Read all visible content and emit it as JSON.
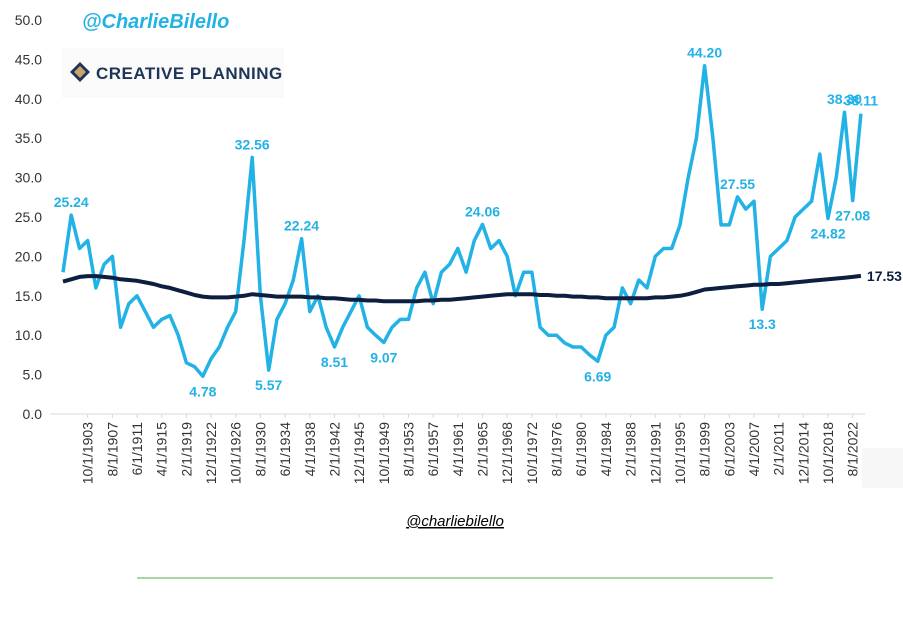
{
  "chart_data": {
    "type": "line",
    "title": "@CharlieBilello",
    "logo_text": "CREATIVE PLANNING",
    "source": "@charliebilello",
    "ylim": [
      0,
      50
    ],
    "yticks": [
      {
        "value": 0,
        "label": "0.0"
      },
      {
        "value": 5,
        "label": "5.0"
      },
      {
        "value": 10,
        "label": "10.0"
      },
      {
        "value": 15,
        "label": "15.0"
      },
      {
        "value": 20,
        "label": "20.0"
      },
      {
        "value": 25,
        "label": "25.0"
      },
      {
        "value": 30,
        "label": "30.0"
      },
      {
        "value": 35,
        "label": "35.0"
      },
      {
        "value": 40,
        "label": "40.0"
      },
      {
        "value": 45,
        "label": "45.0"
      },
      {
        "value": 50,
        "label": "50.0"
      }
    ],
    "grid": false,
    "categories": [
      null,
      null,
      null,
      "10/1/1903",
      null,
      null,
      "8/1/1907",
      null,
      null,
      "6/1/1911",
      null,
      null,
      "4/1/1915",
      null,
      null,
      "2/1/1919",
      null,
      null,
      "12/1/1922",
      null,
      null,
      "10/1/1926",
      null,
      null,
      "8/1/1930",
      null,
      null,
      "6/1/1934",
      null,
      null,
      "4/1/1938",
      null,
      null,
      "2/1/1942",
      null,
      null,
      "12/1/1945",
      null,
      null,
      "10/1/1949",
      null,
      null,
      "8/1/1953",
      null,
      null,
      "6/1/1957",
      null,
      null,
      "4/1/1961",
      null,
      null,
      "2/1/1965",
      null,
      null,
      "12/1/1968",
      null,
      null,
      "10/1/1972",
      null,
      null,
      "8/1/1976",
      null,
      null,
      "6/1/1980",
      null,
      null,
      "4/1/1984",
      null,
      null,
      "2/1/1988",
      null,
      null,
      "12/1/1991",
      null,
      null,
      "10/1/1995",
      null,
      null,
      "8/1/1999",
      null,
      null,
      "6/1/2003",
      null,
      null,
      "4/1/2007",
      null,
      null,
      "2/1/2011",
      null,
      null,
      "12/1/2014",
      null,
      null,
      "10/1/2018",
      null,
      null,
      "8/1/2022",
      null
    ],
    "series": [
      {
        "color": "#22b2e6",
        "values": [
          18,
          25.24,
          21,
          22,
          16,
          19,
          20,
          11,
          14,
          15,
          13,
          11,
          12,
          12.5,
          10,
          6.5,
          6,
          4.78,
          7,
          8.5,
          11,
          13,
          22,
          32.56,
          15,
          5.57,
          12,
          14,
          17,
          22.24,
          13,
          15,
          11,
          8.51,
          11,
          13,
          15,
          11,
          10,
          9.07,
          11,
          12,
          12,
          16,
          18,
          14,
          18,
          19,
          21,
          18,
          22,
          24.06,
          21,
          22,
          20,
          15,
          18,
          18,
          11,
          10,
          10,
          9,
          8.5,
          8.5,
          7.5,
          6.69,
          10,
          11,
          16,
          14,
          17,
          16,
          20,
          21,
          21,
          24,
          30,
          35,
          44.2,
          35,
          24,
          24,
          27.55,
          26,
          27,
          13.3,
          20,
          21,
          22,
          25,
          26,
          27,
          33,
          24.82,
          30,
          38.3,
          27.08,
          38.11
        ],
        "value_labels": [
          null,
          "25.24",
          null,
          null,
          null,
          null,
          null,
          null,
          null,
          null,
          null,
          null,
          null,
          null,
          null,
          null,
          null,
          "4.78",
          null,
          null,
          null,
          null,
          null,
          "32.56",
          null,
          "5.57",
          null,
          null,
          null,
          "22.24",
          null,
          null,
          null,
          "8.51",
          null,
          null,
          null,
          null,
          null,
          "9.07",
          null,
          null,
          null,
          null,
          null,
          null,
          null,
          null,
          null,
          null,
          null,
          "24.06",
          null,
          null,
          null,
          null,
          null,
          null,
          null,
          null,
          null,
          null,
          null,
          null,
          null,
          "6.69",
          null,
          null,
          null,
          null,
          null,
          null,
          null,
          null,
          null,
          null,
          null,
          null,
          "44.20",
          null,
          null,
          null,
          "27.55",
          null,
          null,
          "13.3",
          null,
          null,
          null,
          null,
          null,
          null,
          null,
          "24.82",
          null,
          "38.30",
          "27.08",
          "38.11"
        ]
      },
      {
        "color": "#0d1f40",
        "values": [
          16.8,
          17.1,
          17.4,
          17.5,
          17.5,
          17.4,
          17.3,
          17.1,
          17.0,
          16.9,
          16.7,
          16.5,
          16.2,
          16.0,
          15.7,
          15.4,
          15.1,
          14.9,
          14.8,
          14.8,
          14.8,
          14.9,
          15.0,
          15.2,
          15.1,
          15.0,
          14.9,
          14.9,
          14.9,
          14.9,
          14.8,
          14.8,
          14.7,
          14.7,
          14.6,
          14.5,
          14.5,
          14.4,
          14.4,
          14.3,
          14.3,
          14.3,
          14.3,
          14.3,
          14.4,
          14.4,
          14.5,
          14.5,
          14.6,
          14.7,
          14.8,
          14.9,
          15.0,
          15.1,
          15.2,
          15.2,
          15.2,
          15.2,
          15.1,
          15.1,
          15.0,
          15.0,
          14.9,
          14.9,
          14.8,
          14.8,
          14.7,
          14.7,
          14.7,
          14.7,
          14.7,
          14.7,
          14.8,
          14.8,
          14.9,
          15.0,
          15.2,
          15.5,
          15.8,
          15.9,
          16.0,
          16.1,
          16.2,
          16.3,
          16.4,
          16.4,
          16.5,
          16.5,
          16.6,
          16.7,
          16.8,
          16.9,
          17.0,
          17.1,
          17.2,
          17.3,
          17.4,
          17.53
        ],
        "value_labels": [
          null,
          null,
          null,
          null,
          null,
          null,
          null,
          null,
          null,
          null,
          null,
          null,
          null,
          null,
          null,
          null,
          null,
          null,
          null,
          null,
          null,
          null,
          null,
          null,
          null,
          null,
          null,
          null,
          null,
          null,
          null,
          null,
          null,
          null,
          null,
          null,
          null,
          null,
          null,
          null,
          null,
          null,
          null,
          null,
          null,
          null,
          null,
          null,
          null,
          null,
          null,
          null,
          null,
          null,
          null,
          null,
          null,
          null,
          null,
          null,
          null,
          null,
          null,
          null,
          null,
          null,
          null,
          null,
          null,
          null,
          null,
          null,
          null,
          null,
          null,
          null,
          null,
          null,
          null,
          null,
          null,
          null,
          null,
          null,
          null,
          null,
          null,
          null,
          null,
          null,
          null,
          null,
          null,
          null,
          null,
          null,
          null,
          "17.53"
        ]
      }
    ]
  }
}
